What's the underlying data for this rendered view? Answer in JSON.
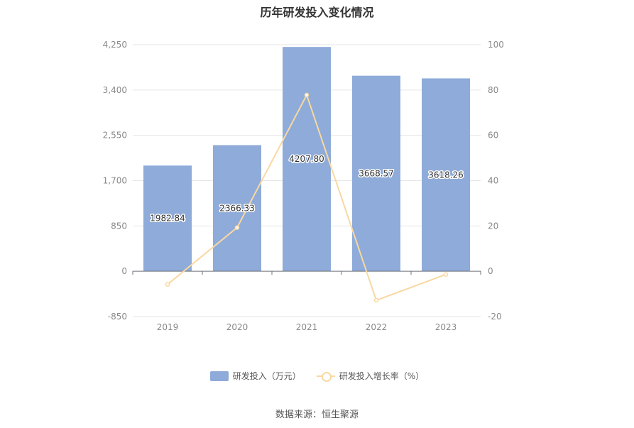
{
  "title": "历年研发投入变化情况",
  "source": "数据来源：恒生聚源",
  "colors": {
    "bar": "#8eabd9",
    "line": "#f9d8a1",
    "grid": "#e6e6e6",
    "axis_text": "#888888"
  },
  "chart_data": {
    "type": "bar",
    "title": "历年研发投入变化情况",
    "categories": [
      "2019",
      "2020",
      "2021",
      "2022",
      "2023"
    ],
    "series": [
      {
        "name": "研发投入（万元）",
        "type": "bar",
        "axis": "left",
        "values": [
          1982.84,
          2366.33,
          4207.8,
          3668.57,
          3618.26
        ],
        "labels": [
          "1982.84",
          "2366.33",
          "4207.80",
          "3668.57",
          "3618.26"
        ]
      },
      {
        "name": "研发投入增长率（%）",
        "type": "line",
        "axis": "right",
        "values": [
          -5.8,
          19.3,
          77.8,
          -12.8,
          -1.4
        ]
      }
    ],
    "y_left": {
      "min": -850,
      "max": 4250,
      "ticks": [
        -850,
        0,
        850,
        1700,
        2550,
        3400,
        4250
      ],
      "tick_labels": [
        "-850",
        "0",
        "850",
        "1,700",
        "2,550",
        "3,400",
        "4,250"
      ]
    },
    "y_right": {
      "min": -20,
      "max": 100,
      "ticks": [
        -20,
        0,
        20,
        40,
        60,
        80,
        100
      ],
      "tick_labels": [
        "-20",
        "0",
        "20",
        "40",
        "60",
        "80",
        "100"
      ]
    },
    "grid": true,
    "legend_position": "bottom"
  },
  "legend": {
    "bar_label": "研发投入（万元）",
    "line_label": "研发投入增长率（%）"
  }
}
